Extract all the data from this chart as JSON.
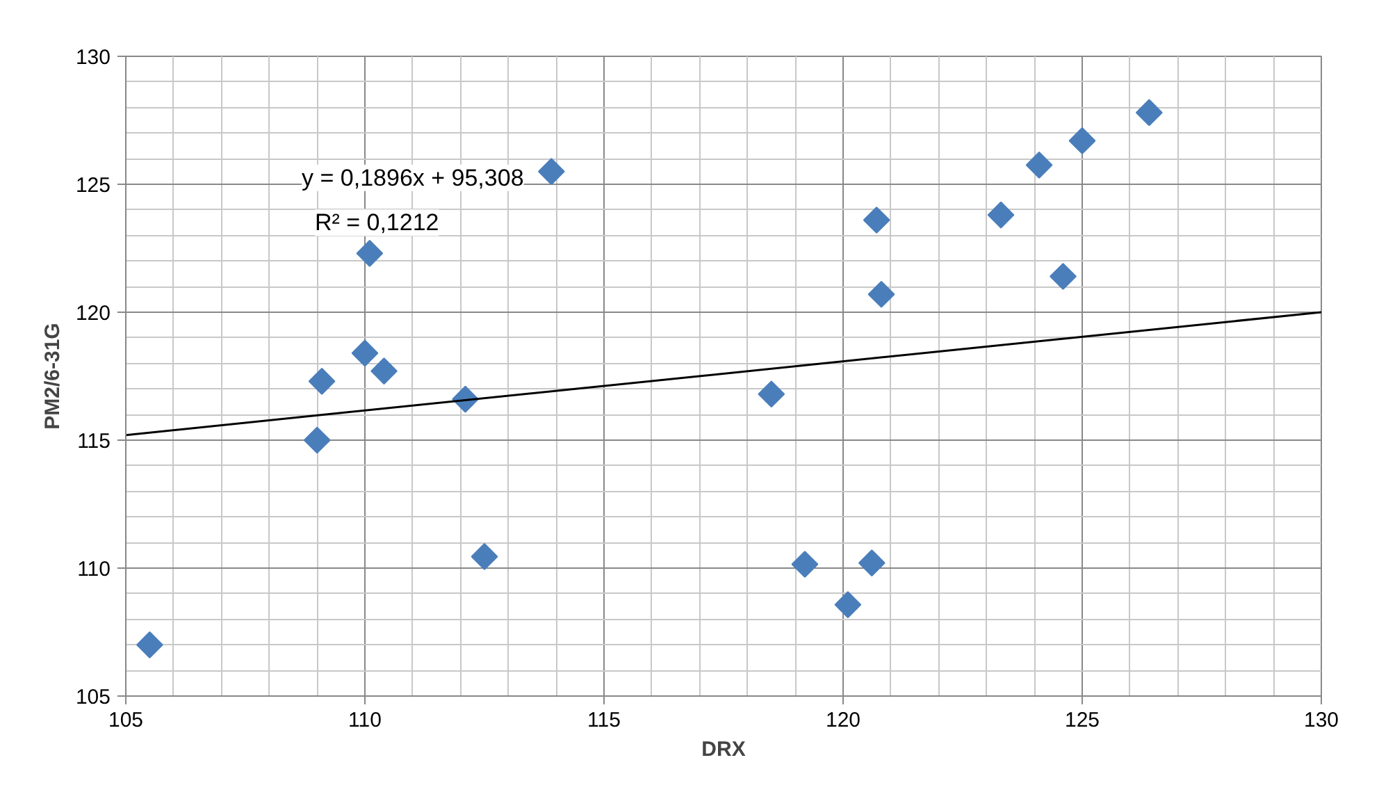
{
  "chart_data": {
    "type": "scatter",
    "xlabel": "DRX",
    "ylabel": "PM2/6-31G",
    "annotations": [
      "y = 0,1896x + 95,308",
      "R² = 0,1212"
    ],
    "xlim": [
      105,
      130
    ],
    "xticks": [
      105,
      110,
      115,
      120,
      125,
      130
    ],
    "ylim": [
      105,
      130
    ],
    "yticks": [
      105,
      110,
      115,
      120,
      125,
      130
    ],
    "grid": true,
    "series": [
      {
        "color": "#4a7ebb",
        "marker": "diamond",
        "x": [
          105.5,
          109.0,
          109.1,
          110.0,
          110.4,
          110.1,
          112.1,
          112.5,
          113.9,
          118.5,
          119.2,
          120.1,
          120.6,
          120.7,
          120.8,
          123.3,
          124.1,
          124.6,
          125.0,
          126.4
        ],
        "values": [
          107.0,
          115.0,
          117.3,
          118.4,
          117.7,
          122.3,
          116.6,
          110.45,
          125.5,
          116.8,
          110.15,
          108.57,
          110.2,
          123.6,
          120.7,
          123.8,
          125.75,
          121.4,
          126.7,
          127.8
        ]
      },
      {
        "type": "line",
        "color": "#000000",
        "line_style": "solid",
        "x": [
          105,
          130
        ],
        "values": [
          115.2,
          120.0
        ]
      }
    ]
  }
}
